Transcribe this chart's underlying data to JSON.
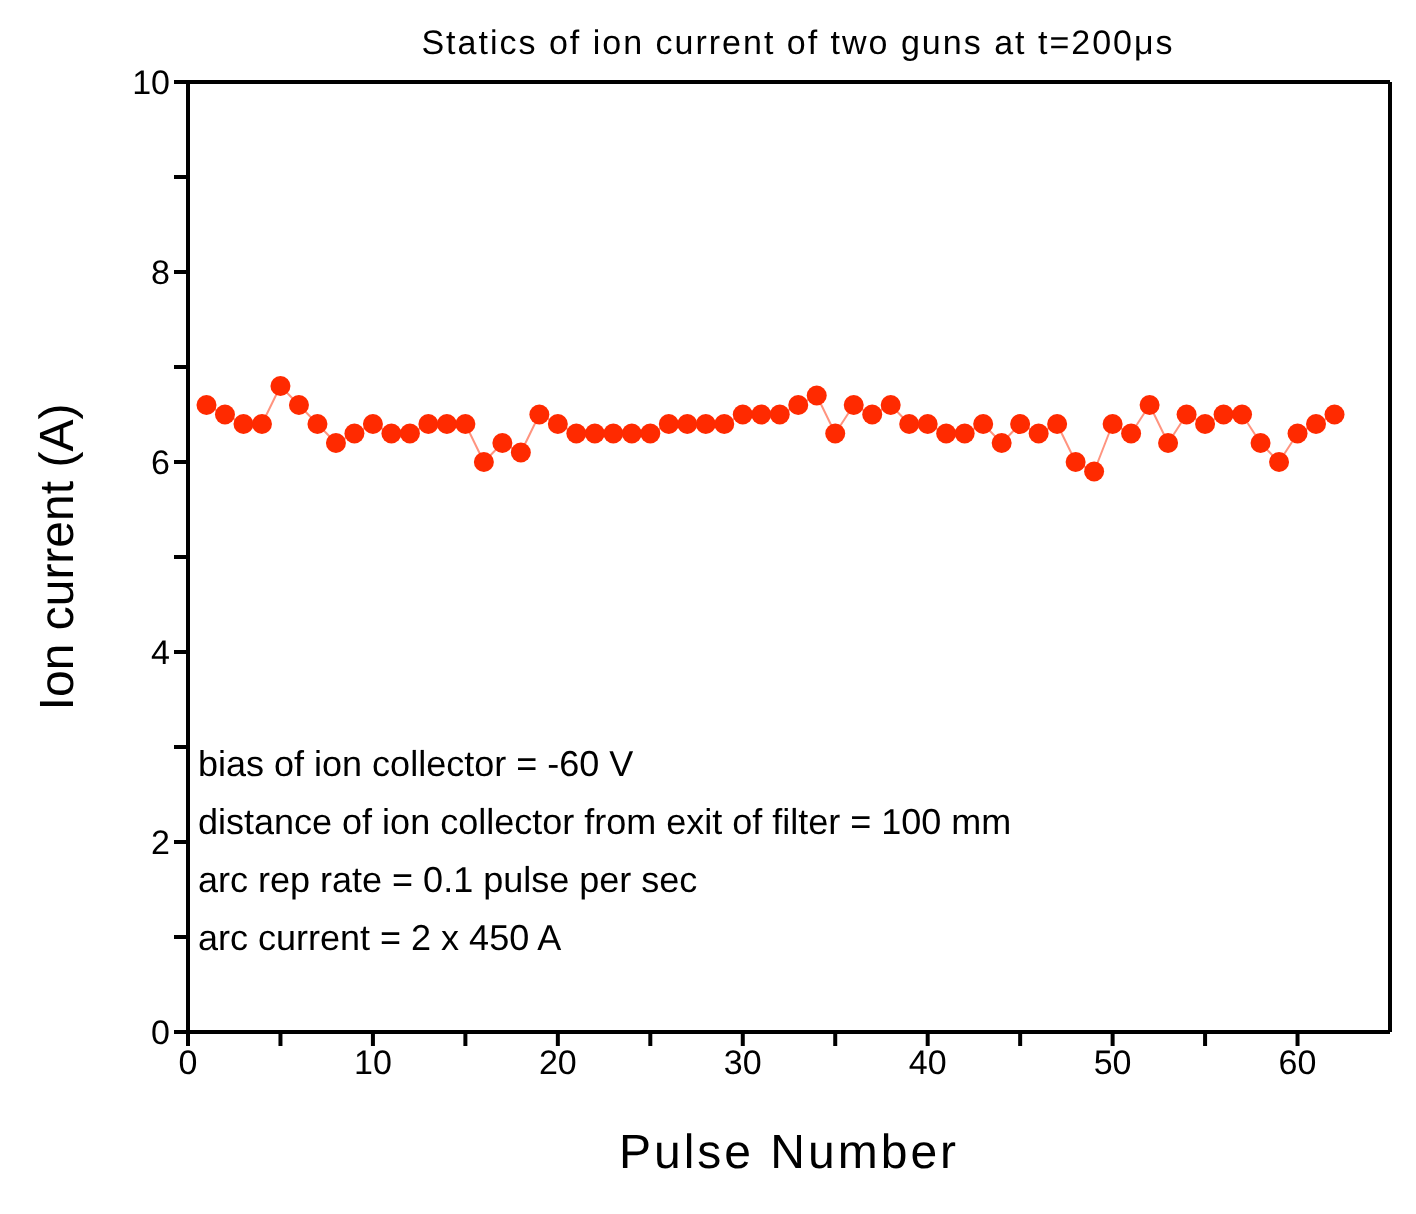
{
  "chart_data": {
    "type": "line",
    "title": "Statics of ion current of two guns at t=200μs",
    "xlabel": "Pulse Number",
    "ylabel": "Ion current (A)",
    "x": [
      1,
      2,
      3,
      4,
      5,
      6,
      7,
      8,
      9,
      10,
      11,
      12,
      13,
      14,
      15,
      16,
      17,
      18,
      19,
      20,
      21,
      22,
      23,
      24,
      25,
      26,
      27,
      28,
      29,
      30,
      31,
      32,
      33,
      34,
      35,
      36,
      37,
      38,
      39,
      40,
      41,
      42,
      43,
      44,
      45,
      46,
      47,
      48,
      49,
      50,
      51,
      52,
      53,
      54,
      55,
      56,
      57,
      58,
      59,
      60,
      61,
      62
    ],
    "series": [
      {
        "color": "#ff2a00",
        "values": [
          6.6,
          6.5,
          6.4,
          6.4,
          6.8,
          6.6,
          6.4,
          6.2,
          6.3,
          6.4,
          6.3,
          6.3,
          6.4,
          6.4,
          6.4,
          6.0,
          6.2,
          6.1,
          6.5,
          6.4,
          6.3,
          6.3,
          6.3,
          6.3,
          6.3,
          6.4,
          6.4,
          6.4,
          6.4,
          6.5,
          6.5,
          6.5,
          6.6,
          6.7,
          6.3,
          6.6,
          6.5,
          6.6,
          6.4,
          6.4,
          6.3,
          6.3,
          6.4,
          6.2,
          6.4,
          6.3,
          6.4,
          6.0,
          5.9,
          6.4,
          6.3,
          6.6,
          6.2,
          6.5,
          6.4,
          6.5,
          6.5,
          6.2,
          6.0,
          6.3,
          6.4,
          6.5
        ]
      }
    ],
    "xlim": [
      0,
      65
    ],
    "xticks": [
      0,
      {
        "value": 5,
        "label": null
      },
      10,
      {
        "value": 15,
        "label": null
      },
      20,
      {
        "value": 25,
        "label": null
      },
      30,
      {
        "value": 35,
        "label": null
      },
      40,
      {
        "value": 45,
        "label": null
      },
      50,
      {
        "value": 55,
        "label": null
      },
      60
    ],
    "ylim": [
      0,
      10
    ],
    "yticks": [
      0,
      {
        "value": 1,
        "label": null
      },
      2,
      {
        "value": 3,
        "label": null
      },
      4,
      {
        "value": 5,
        "label": null
      },
      6,
      {
        "value": 7,
        "label": null
      },
      8,
      {
        "value": 9,
        "label": null
      },
      10
    ],
    "marker": "circle",
    "line_style": "solid",
    "grid": false,
    "legend": false,
    "annotations": [
      "bias of ion collector = -60 V",
      "distance of ion collector from exit of filter = 100 mm",
      "arc rep rate = 0.1 pulse per sec",
      "arc current = 2 x 450 A"
    ]
  }
}
